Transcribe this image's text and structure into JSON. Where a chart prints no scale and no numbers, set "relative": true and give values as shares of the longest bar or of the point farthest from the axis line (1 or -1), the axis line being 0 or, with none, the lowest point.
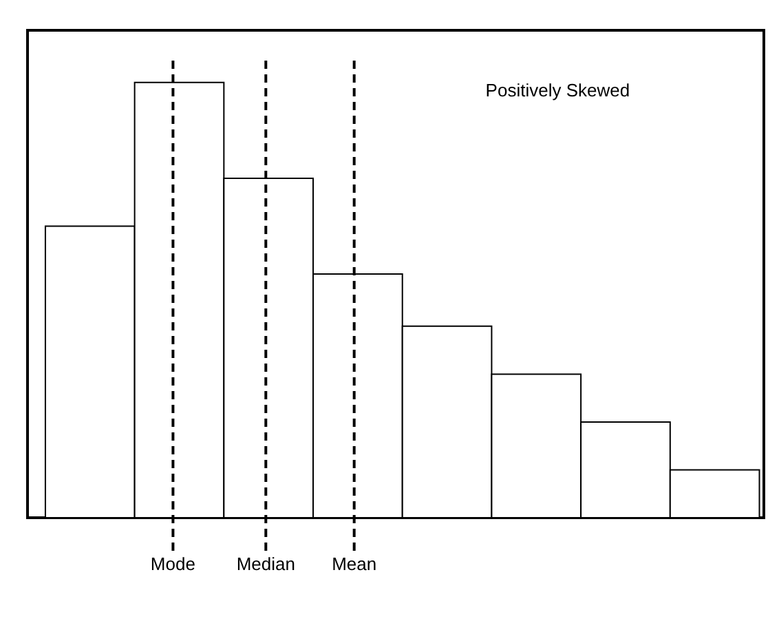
{
  "chart_data": {
    "type": "bar",
    "relative": true,
    "categories": [
      null,
      null,
      null,
      null,
      null,
      null,
      null,
      null
    ],
    "values": [
      0.67,
      1,
      0.78,
      0.56,
      0.44,
      0.33,
      0.22,
      0.11
    ],
    "color": "#ffffff",
    "annotations": [
      "Positively Skewed",
      "Mode",
      "Median",
      "Mean"
    ]
  }
}
